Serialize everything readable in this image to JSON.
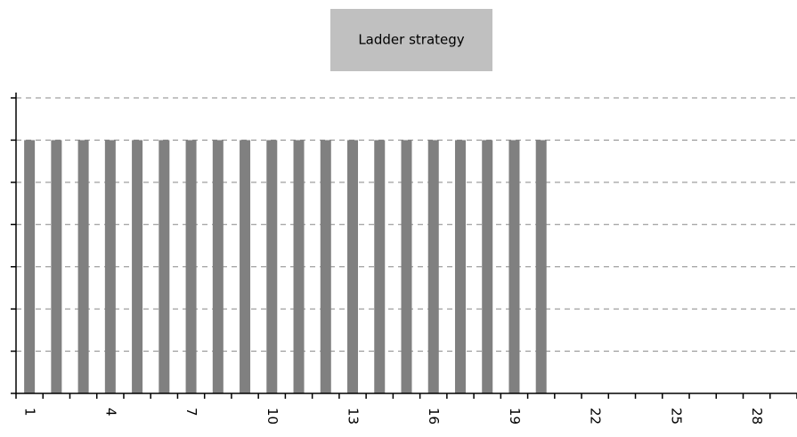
{
  "chart_data": {
    "type": "bar",
    "title": "Ladder strategy",
    "categories": [
      1,
      null,
      null,
      4,
      null,
      null,
      7,
      null,
      null,
      10,
      null,
      null,
      13,
      null,
      null,
      16,
      null,
      null,
      19,
      null,
      null,
      22,
      null,
      null,
      25,
      null,
      null,
      28,
      null
    ],
    "values": [
      6,
      6,
      6,
      6,
      6,
      6,
      6,
      6,
      6,
      6,
      6,
      6,
      6,
      6,
      6,
      6,
      6,
      6,
      6,
      6,
      0,
      0,
      0,
      0,
      0,
      0,
      0,
      0,
      0
    ],
    "color": "#808080",
    "ylim": [
      0,
      7
    ],
    "yticks": [
      0,
      1,
      2,
      3,
      4,
      5,
      6,
      7
    ],
    "grid": true
  }
}
